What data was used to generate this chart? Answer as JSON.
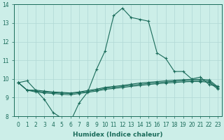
{
  "xlabel": "Humidex (Indice chaleur)",
  "x": [
    0,
    1,
    2,
    3,
    4,
    5,
    6,
    7,
    8,
    9,
    10,
    11,
    12,
    13,
    14,
    15,
    16,
    17,
    18,
    19,
    20,
    21,
    22,
    23
  ],
  "series1": [
    9.8,
    9.9,
    9.4,
    8.9,
    8.2,
    7.9,
    7.7,
    8.7,
    9.3,
    10.5,
    11.5,
    13.4,
    13.8,
    13.3,
    13.2,
    13.1,
    11.4,
    11.1,
    10.4,
    10.4,
    10.0,
    10.1,
    9.7,
    9.6
  ],
  "series2": [
    9.8,
    9.4,
    9.4,
    9.35,
    9.3,
    9.28,
    9.25,
    9.3,
    9.38,
    9.45,
    9.55,
    9.6,
    9.65,
    9.72,
    9.78,
    9.82,
    9.86,
    9.9,
    9.93,
    9.96,
    9.98,
    9.98,
    9.95,
    9.58
  ],
  "series3": [
    9.8,
    9.4,
    9.35,
    9.3,
    9.27,
    9.24,
    9.22,
    9.27,
    9.33,
    9.4,
    9.5,
    9.55,
    9.6,
    9.66,
    9.71,
    9.76,
    9.8,
    9.84,
    9.87,
    9.9,
    9.92,
    9.92,
    9.88,
    9.52
  ],
  "series4": [
    9.8,
    9.4,
    9.3,
    9.25,
    9.22,
    9.18,
    9.15,
    9.22,
    9.28,
    9.35,
    9.44,
    9.49,
    9.54,
    9.6,
    9.65,
    9.7,
    9.74,
    9.78,
    9.81,
    9.84,
    9.86,
    9.86,
    9.82,
    9.46
  ],
  "bg_color": "#cceee8",
  "grid_color": "#b0d8d4",
  "line_color": "#1a6b5a",
  "ylim": [
    8.0,
    14.0
  ],
  "xlim_min": -0.5,
  "xlim_max": 23.5,
  "yticks": [
    8,
    9,
    10,
    11,
    12,
    13,
    14
  ],
  "xticks": [
    0,
    1,
    2,
    3,
    4,
    5,
    6,
    7,
    8,
    9,
    10,
    11,
    12,
    13,
    14,
    15,
    16,
    17,
    18,
    19,
    20,
    21,
    22,
    23
  ],
  "markersize": 2.0,
  "linewidth": 0.8,
  "tick_fontsize": 5.5,
  "label_fontsize": 6.5
}
